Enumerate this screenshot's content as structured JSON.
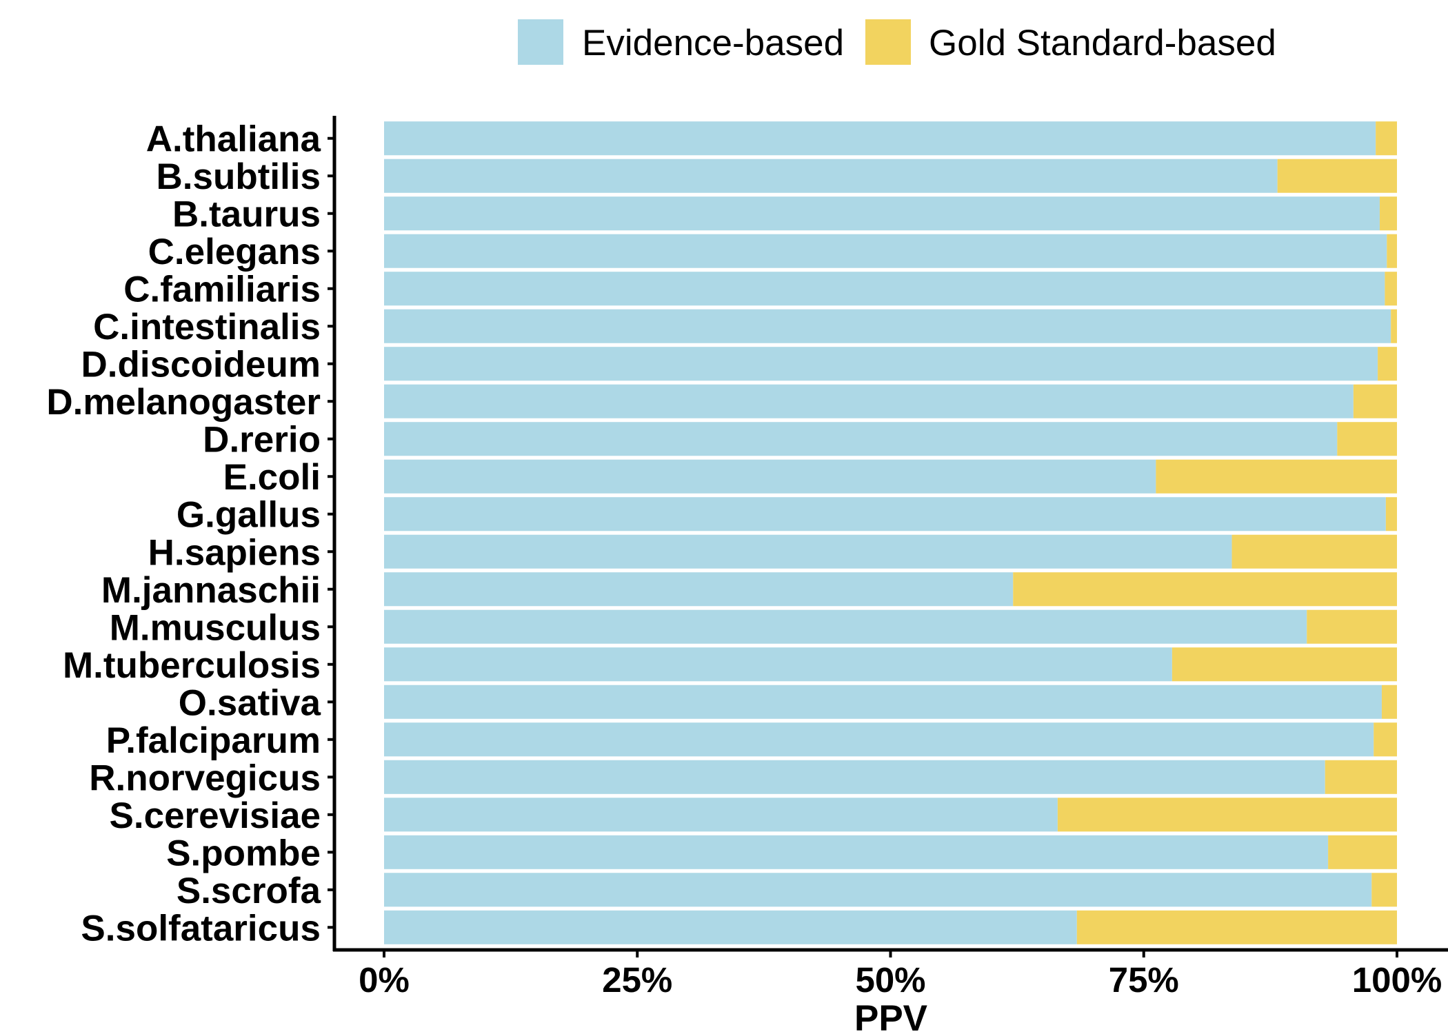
{
  "chart_data": {
    "type": "bar",
    "orientation": "horizontal",
    "stacking": "percent",
    "title": "",
    "xlabel": "PPV",
    "ylabel": "",
    "xlim": [
      0,
      100
    ],
    "xticks": [
      0,
      25,
      50,
      75,
      100
    ],
    "xtick_labels": [
      "0%",
      "25%",
      "50%",
      "75%",
      "100%"
    ],
    "grid": false,
    "legend_position": "top",
    "categories": [
      "A.thaliana",
      "B.subtilis",
      "B.taurus",
      "C.elegans",
      "C.familiaris",
      "C.intestinalis",
      "D.discoideum",
      "D.melanogaster",
      "D.rerio",
      "E.coli",
      "G.gallus",
      "H.sapiens",
      "M.jannaschii",
      "M.musculus",
      "M.tuberculosis",
      "O.sativa",
      "P.falciparum",
      "R.norvegicus",
      "S.cerevisiae",
      "S.pombe",
      "S.scrofa",
      "S.solfataricus"
    ],
    "series": [
      {
        "name": "Evidence-based",
        "color": "#ADD8E6",
        "values": [
          97.9,
          88.2,
          98.3,
          99.0,
          98.8,
          99.4,
          98.1,
          95.7,
          94.1,
          76.2,
          98.9,
          83.7,
          62.1,
          91.1,
          77.8,
          98.5,
          97.7,
          92.9,
          66.5,
          93.2,
          97.5,
          68.4
        ]
      },
      {
        "name": "Gold Standard-based",
        "color": "#F2D35F",
        "values": [
          2.1,
          11.8,
          1.7,
          1.0,
          1.2,
          0.6,
          1.9,
          4.3,
          5.9,
          23.8,
          1.1,
          16.3,
          37.9,
          8.9,
          22.2,
          1.5,
          2.3,
          7.1,
          33.5,
          6.8,
          2.5,
          31.6
        ]
      }
    ]
  }
}
